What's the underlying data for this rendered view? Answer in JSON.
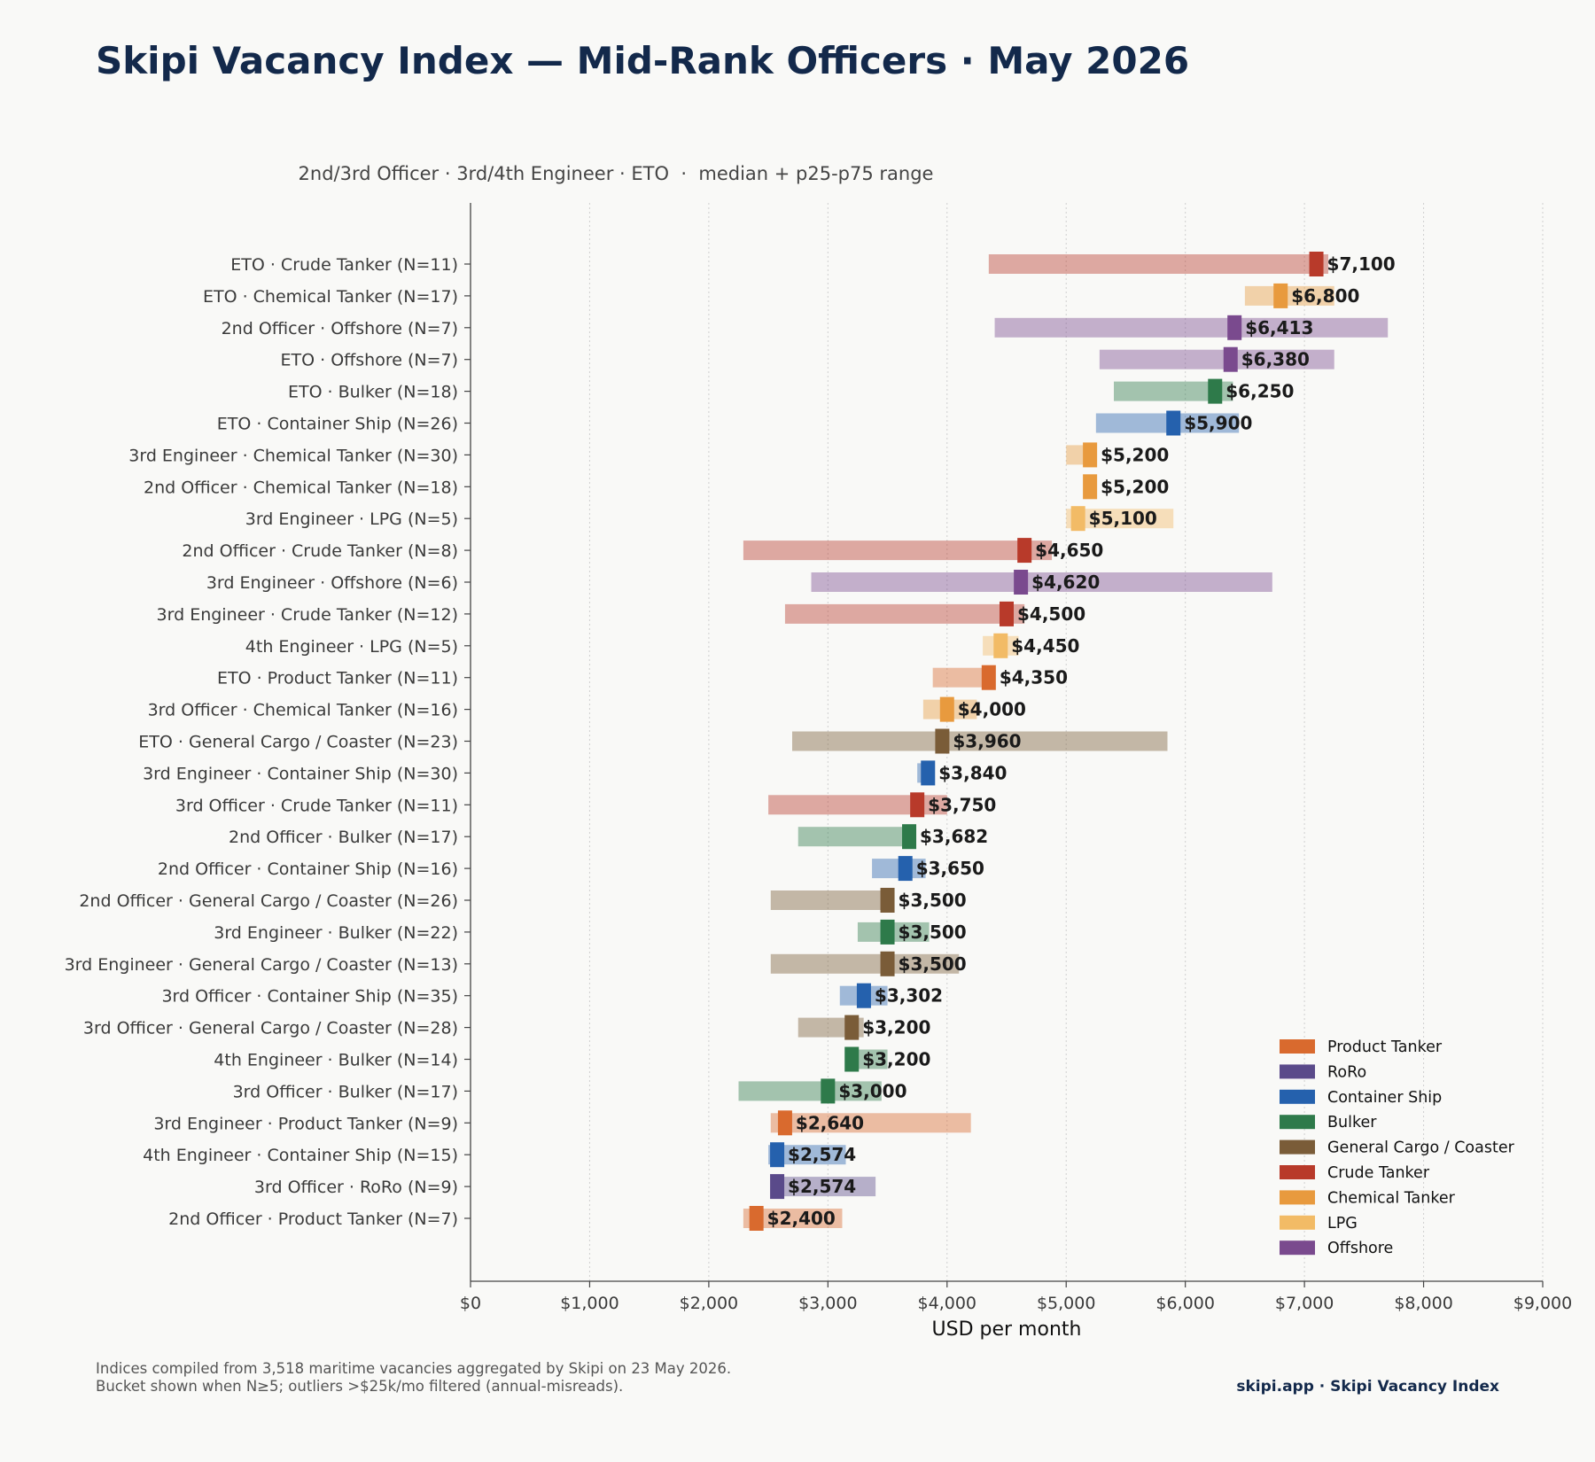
{
  "title": "Skipi Vacancy Index — Mid-Rank Officers · May 2026",
  "footer": {
    "note_line1": "Indices compiled from 3,518 maritime vacancies aggregated by Skipi on 23 May 2026.",
    "note_line2": "Bucket shown when N≥5; outliers >$25k/mo filtered (annual-misreads).",
    "brand": "skipi.app · Skipi Vacancy Index"
  },
  "chart_data": {
    "type": "bar",
    "subtitle": "2nd/3rd Officer · 3rd/4th Engineer · ETO  ·  median + p25-p75 range",
    "xlabel": "USD per month",
    "xlim": [
      0,
      9000
    ],
    "xticks": [
      0,
      1000,
      2000,
      3000,
      4000,
      5000,
      6000,
      7000,
      8000,
      9000
    ],
    "xtick_labels": [
      "$0",
      "$1,000",
      "$2,000",
      "$3,000",
      "$4,000",
      "$5,000",
      "$6,000",
      "$7,000",
      "$8,000",
      "$9,000"
    ],
    "grid": "vertical dotted",
    "legend_position": "bottom-right",
    "vessel_colors": {
      "Product Tanker": "#d96a2e",
      "RoRo": "#5a4a8a",
      "Container Ship": "#2561ad",
      "Bulker": "#2e7a4a",
      "General Cargo / Coaster": "#7a5c38",
      "Crude Tanker": "#b83a2a",
      "Chemical Tanker": "#e89a3e",
      "LPG": "#f2bb66",
      "Offshore": "#7a4a8e"
    },
    "legend": [
      "Product Tanker",
      "RoRo",
      "Container Ship",
      "Bulker",
      "General Cargo / Coaster",
      "Crude Tanker",
      "Chemical Tanker",
      "LPG",
      "Offshore"
    ],
    "rows": [
      {
        "label": "ETO · Crude Tanker  (N=11)",
        "vessel": "Crude Tanker",
        "p25": 4350,
        "p75": 7200,
        "median": 7100,
        "median_label": "$7,100"
      },
      {
        "label": "ETO · Chemical Tanker  (N=17)",
        "vessel": "Chemical Tanker",
        "p25": 6500,
        "p75": 7250,
        "median": 6800,
        "median_label": "$6,800"
      },
      {
        "label": "2nd Officer · Offshore  (N=7)",
        "vessel": "Offshore",
        "p25": 4400,
        "p75": 7700,
        "median": 6413,
        "median_label": "$6,413"
      },
      {
        "label": "ETO · Offshore  (N=7)",
        "vessel": "Offshore",
        "p25": 5280,
        "p75": 7250,
        "median": 6380,
        "median_label": "$6,380"
      },
      {
        "label": "ETO · Bulker  (N=18)",
        "vessel": "Bulker",
        "p25": 5400,
        "p75": 6400,
        "median": 6250,
        "median_label": "$6,250"
      },
      {
        "label": "ETO · Container Ship  (N=26)",
        "vessel": "Container Ship",
        "p25": 5250,
        "p75": 6450,
        "median": 5900,
        "median_label": "$5,900"
      },
      {
        "label": "3rd Engineer · Chemical Tanker  (N=30)",
        "vessel": "Chemical Tanker",
        "p25": 5000,
        "p75": 5250,
        "median": 5200,
        "median_label": "$5,200"
      },
      {
        "label": "2nd Officer · Chemical Tanker  (N=18)",
        "vessel": "Chemical Tanker",
        "p25": 5150,
        "p75": 5250,
        "median": 5200,
        "median_label": "$5,200"
      },
      {
        "label": "3rd Engineer · LPG  (N=5)",
        "vessel": "LPG",
        "p25": 5000,
        "p75": 5900,
        "median": 5100,
        "median_label": "$5,100"
      },
      {
        "label": "2nd Officer · Crude Tanker  (N=8)",
        "vessel": "Crude Tanker",
        "p25": 2290,
        "p75": 4880,
        "median": 4650,
        "median_label": "$4,650"
      },
      {
        "label": "3rd Engineer · Offshore  (N=6)",
        "vessel": "Offshore",
        "p25": 2860,
        "p75": 6730,
        "median": 4620,
        "median_label": "$4,620"
      },
      {
        "label": "3rd Engineer · Crude Tanker  (N=12)",
        "vessel": "Crude Tanker",
        "p25": 2640,
        "p75": 4650,
        "median": 4500,
        "median_label": "$4,500"
      },
      {
        "label": "4th Engineer · LPG  (N=5)",
        "vessel": "LPG",
        "p25": 4300,
        "p75": 4600,
        "median": 4450,
        "median_label": "$4,450"
      },
      {
        "label": "ETO · Product Tanker  (N=11)",
        "vessel": "Product Tanker",
        "p25": 3880,
        "p75": 4350,
        "median": 4350,
        "median_label": "$4,350"
      },
      {
        "label": "3rd Officer · Chemical Tanker  (N=16)",
        "vessel": "Chemical Tanker",
        "p25": 3800,
        "p75": 4250,
        "median": 4000,
        "median_label": "$4,000"
      },
      {
        "label": "ETO · General Cargo / Coaster  (N=23)",
        "vessel": "General Cargo / Coaster",
        "p25": 2700,
        "p75": 5850,
        "median": 3960,
        "median_label": "$3,960"
      },
      {
        "label": "3rd Engineer · Container Ship  (N=30)",
        "vessel": "Container Ship",
        "p25": 3750,
        "p75": 3850,
        "median": 3840,
        "median_label": "$3,840"
      },
      {
        "label": "3rd Officer · Crude Tanker  (N=11)",
        "vessel": "Crude Tanker",
        "p25": 2500,
        "p75": 4000,
        "median": 3750,
        "median_label": "$3,750"
      },
      {
        "label": "2nd Officer · Bulker  (N=17)",
        "vessel": "Bulker",
        "p25": 2750,
        "p75": 3700,
        "median": 3682,
        "median_label": "$3,682"
      },
      {
        "label": "2nd Officer · Container Ship  (N=16)",
        "vessel": "Container Ship",
        "p25": 3370,
        "p75": 3820,
        "median": 3650,
        "median_label": "$3,650"
      },
      {
        "label": "2nd Officer · General Cargo / Coaster  (N=26)",
        "vessel": "General Cargo / Coaster",
        "p25": 2520,
        "p75": 3520,
        "median": 3500,
        "median_label": "$3,500"
      },
      {
        "label": "3rd Engineer · Bulker  (N=22)",
        "vessel": "Bulker",
        "p25": 3250,
        "p75": 3850,
        "median": 3500,
        "median_label": "$3,500"
      },
      {
        "label": "3rd Engineer · General Cargo / Coaster  (N=13)",
        "vessel": "General Cargo / Coaster",
        "p25": 2520,
        "p75": 4100,
        "median": 3500,
        "median_label": "$3,500"
      },
      {
        "label": "3rd Officer · Container Ship  (N=35)",
        "vessel": "Container Ship",
        "p25": 3100,
        "p75": 3500,
        "median": 3302,
        "median_label": "$3,302"
      },
      {
        "label": "3rd Officer · General Cargo / Coaster  (N=28)",
        "vessel": "General Cargo / Coaster",
        "p25": 2750,
        "p75": 3300,
        "median": 3200,
        "median_label": "$3,200"
      },
      {
        "label": "4th Engineer · Bulker  (N=14)",
        "vessel": "Bulker",
        "p25": 3150,
        "p75": 3500,
        "median": 3200,
        "median_label": "$3,200"
      },
      {
        "label": "3rd Officer · Bulker  (N=17)",
        "vessel": "Bulker",
        "p25": 2250,
        "p75": 3450,
        "median": 3000,
        "median_label": "$3,000"
      },
      {
        "label": "3rd Engineer · Product Tanker  (N=9)",
        "vessel": "Product Tanker",
        "p25": 2520,
        "p75": 4200,
        "median": 2640,
        "median_label": "$2,640"
      },
      {
        "label": "4th Engineer · Container Ship  (N=15)",
        "vessel": "Container Ship",
        "p25": 2500,
        "p75": 3150,
        "median": 2574,
        "median_label": "$2,574"
      },
      {
        "label": "3rd Officer · RoRo  (N=9)",
        "vessel": "RoRo",
        "p25": 2520,
        "p75": 3400,
        "median": 2574,
        "median_label": "$2,574"
      },
      {
        "label": "2nd Officer · Product Tanker  (N=7)",
        "vessel": "Product Tanker",
        "p25": 2290,
        "p75": 3120,
        "median": 2400,
        "median_label": "$2,400"
      }
    ]
  }
}
